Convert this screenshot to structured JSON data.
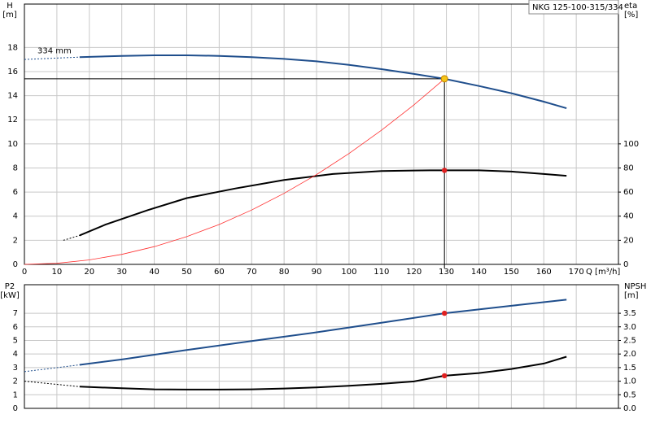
{
  "chart_data": [
    {
      "type": "line",
      "title": "NKG 125-100-315/334",
      "annotation": "334 mm",
      "ylabel": "H",
      "yunit": "[m]",
      "y2label": "eta",
      "y2unit": "[%]",
      "xlabel": "Q [m³/h]",
      "xlim": [
        0,
        183
      ],
      "xticks": [
        0,
        10,
        20,
        30,
        40,
        50,
        60,
        70,
        80,
        90,
        100,
        110,
        120,
        130,
        140,
        150,
        160,
        170
      ],
      "ylim": [
        0,
        21.6
      ],
      "yticks": [
        0,
        2,
        4,
        6,
        8,
        10,
        12,
        14,
        16,
        18
      ],
      "y2lim": [
        0,
        216
      ],
      "y2ticks": [
        0,
        20,
        40,
        60,
        80,
        100
      ],
      "grid": true,
      "series": [
        {
          "color": "#1f4e8c",
          "dashed": true,
          "x": [
            0,
            17
          ],
          "values": [
            17.0,
            17.2
          ]
        },
        {
          "color": "#1f4e8c",
          "x": [
            17,
            30,
            40,
            50,
            60,
            70,
            80,
            90,
            100,
            110,
            120,
            129.4,
            140,
            150,
            160,
            167
          ],
          "values": [
            17.2,
            17.3,
            17.35,
            17.35,
            17.3,
            17.2,
            17.05,
            16.85,
            16.55,
            16.2,
            15.8,
            15.4,
            14.8,
            14.2,
            13.5,
            12.95
          ]
        },
        {
          "color": "#000000",
          "dashed": true,
          "axis": "y2",
          "x": [
            12,
            17
          ],
          "values": [
            20,
            24
          ]
        },
        {
          "color": "#000000",
          "axis": "y2",
          "x": [
            17,
            25,
            38,
            50,
            65,
            80,
            95,
            110,
            125,
            130,
            140,
            150,
            160,
            167
          ],
          "values": [
            24,
            33,
            45,
            55,
            63,
            70,
            75,
            77.5,
            78,
            78,
            78,
            77,
            75,
            73.5
          ]
        },
        {
          "color": "#ff3030",
          "thin": true,
          "x": [
            0,
            10,
            20,
            30,
            40,
            50,
            60,
            70,
            80,
            90,
            100,
            110,
            120,
            129.4
          ],
          "values": [
            0,
            0.09,
            0.37,
            0.83,
            1.47,
            2.3,
            3.31,
            4.51,
            5.89,
            7.45,
            9.2,
            11.13,
            13.24,
            15.4
          ]
        }
      ],
      "points": [
        {
          "x": 129.4,
          "y": 15.4,
          "color": "#f5c518",
          "crosshair": true
        },
        {
          "x": 129.4,
          "y": 78,
          "axis": "y2",
          "color": "#e02020"
        }
      ]
    },
    {
      "type": "line",
      "ylabel": "P2",
      "yunit": "[kW]",
      "y2label": "NPSH",
      "y2unit": "[m]",
      "xlim": [
        0,
        183
      ],
      "xticks": [
        0,
        10,
        20,
        30,
        40,
        50,
        60,
        70,
        80,
        90,
        100,
        110,
        120,
        130,
        140,
        150,
        160,
        170
      ],
      "ylim": [
        0,
        9.1
      ],
      "yticks": [
        0,
        1,
        2,
        3,
        4,
        5,
        6,
        7
      ],
      "y2lim": [
        0,
        4.55
      ],
      "y2ticks": [
        {
          "value": 0,
          "label": "0.0"
        },
        0.5,
        {
          "value": 1,
          "label": "1.0"
        },
        1.5,
        {
          "value": 2,
          "label": "2.0"
        },
        2.5,
        {
          "value": 3,
          "label": "3.0"
        },
        3.5
      ],
      "grid": true,
      "series": [
        {
          "color": "#1f4e8c",
          "dashed": true,
          "x": [
            0,
            17
          ],
          "values": [
            2.7,
            3.2
          ]
        },
        {
          "color": "#1f4e8c",
          "x": [
            17,
            30,
            50,
            70,
            90,
            110,
            129.4,
            150,
            167
          ],
          "values": [
            3.2,
            3.6,
            4.3,
            4.95,
            5.6,
            6.3,
            7.0,
            7.55,
            8.0
          ]
        },
        {
          "color": "#000000",
          "dashed": true,
          "axis": "y2",
          "x": [
            0,
            17
          ],
          "values": [
            1.0,
            0.8
          ]
        },
        {
          "color": "#000000",
          "axis": "y2",
          "x": [
            17,
            30,
            40,
            50,
            60,
            70,
            80,
            90,
            100,
            110,
            120,
            129.4,
            140,
            150,
            160,
            167
          ],
          "values": [
            0.8,
            0.74,
            0.7,
            0.69,
            0.69,
            0.7,
            0.73,
            0.77,
            0.83,
            0.9,
            0.99,
            1.2,
            1.3,
            1.45,
            1.65,
            1.9
          ]
        }
      ],
      "points": [
        {
          "x": 129.4,
          "y": 7.0,
          "color": "#e02020"
        },
        {
          "x": 129.4,
          "y": 1.2,
          "axis": "y2",
          "color": "#e02020"
        }
      ]
    }
  ]
}
